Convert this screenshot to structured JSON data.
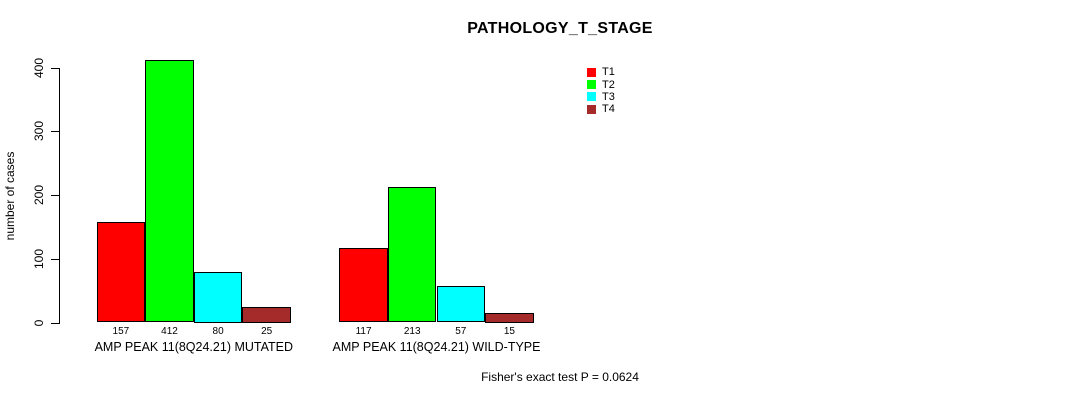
{
  "chart_data": {
    "type": "bar",
    "title": "PATHOLOGY_T_STAGE",
    "ylabel": "number of cases",
    "xlabel": "",
    "ylim": [
      0,
      400
    ],
    "yticks": [
      0,
      100,
      200,
      300,
      400
    ],
    "grid": false,
    "legend_position": "top-right",
    "categories": [
      "AMP PEAK 11(8Q24.21) MUTATED",
      "AMP PEAK 11(8Q24.21) WILD-TYPE"
    ],
    "series": [
      {
        "name": "T1",
        "color": "#FF0000",
        "values": [
          157,
          117
        ]
      },
      {
        "name": "T2",
        "color": "#00FF00",
        "values": [
          412,
          213
        ]
      },
      {
        "name": "T3",
        "color": "#00FFFF",
        "values": [
          80,
          57
        ]
      },
      {
        "name": "T4",
        "color": "#A52A2A",
        "values": [
          25,
          15
        ]
      }
    ],
    "bar_value_labels": [
      [
        "157",
        "412",
        "80",
        "25"
      ],
      [
        "117",
        "213",
        "57",
        "15"
      ]
    ],
    "annotation": "Fisher's exact test P = 0.0624",
    "background_color": "#FFFFFF",
    "axis_color": "#000000"
  }
}
